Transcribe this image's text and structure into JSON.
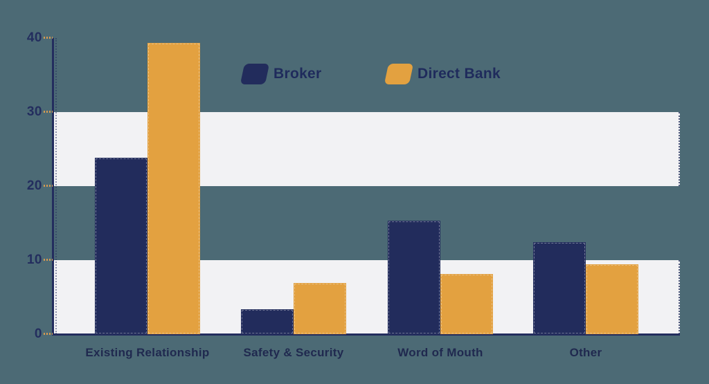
{
  "page": {
    "background_color": "#4c6a75",
    "band_color": "#f2f2f4",
    "axis_color": "#232d5e",
    "tick_color": "#d59a53",
    "label_color": "#20294f"
  },
  "legend": {
    "items": [
      {
        "label": "Broker",
        "color": "#222c5c"
      },
      {
        "label": "Direct Bank",
        "color": "#e3a140"
      }
    ]
  },
  "chart_data": {
    "type": "bar",
    "title": "",
    "xlabel": "",
    "ylabel": "",
    "categories": [
      "Existing Relationship",
      "Safety & Security",
      "Word of Mouth",
      "Other"
    ],
    "series": [
      {
        "name": "Broker",
        "color": "#222c5c",
        "values": [
          23.8,
          3.4,
          15.3,
          12.4
        ]
      },
      {
        "name": "Direct Bank",
        "color": "#e3a140",
        "values": [
          39.3,
          6.9,
          8.1,
          9.4
        ]
      }
    ],
    "ylim": [
      0,
      40
    ],
    "yticks": [
      0,
      10,
      20,
      30,
      40
    ],
    "grid": "alternating horizontal white bands at 0-10 and 20-30, no gridlines",
    "legend_position": "top-center"
  }
}
